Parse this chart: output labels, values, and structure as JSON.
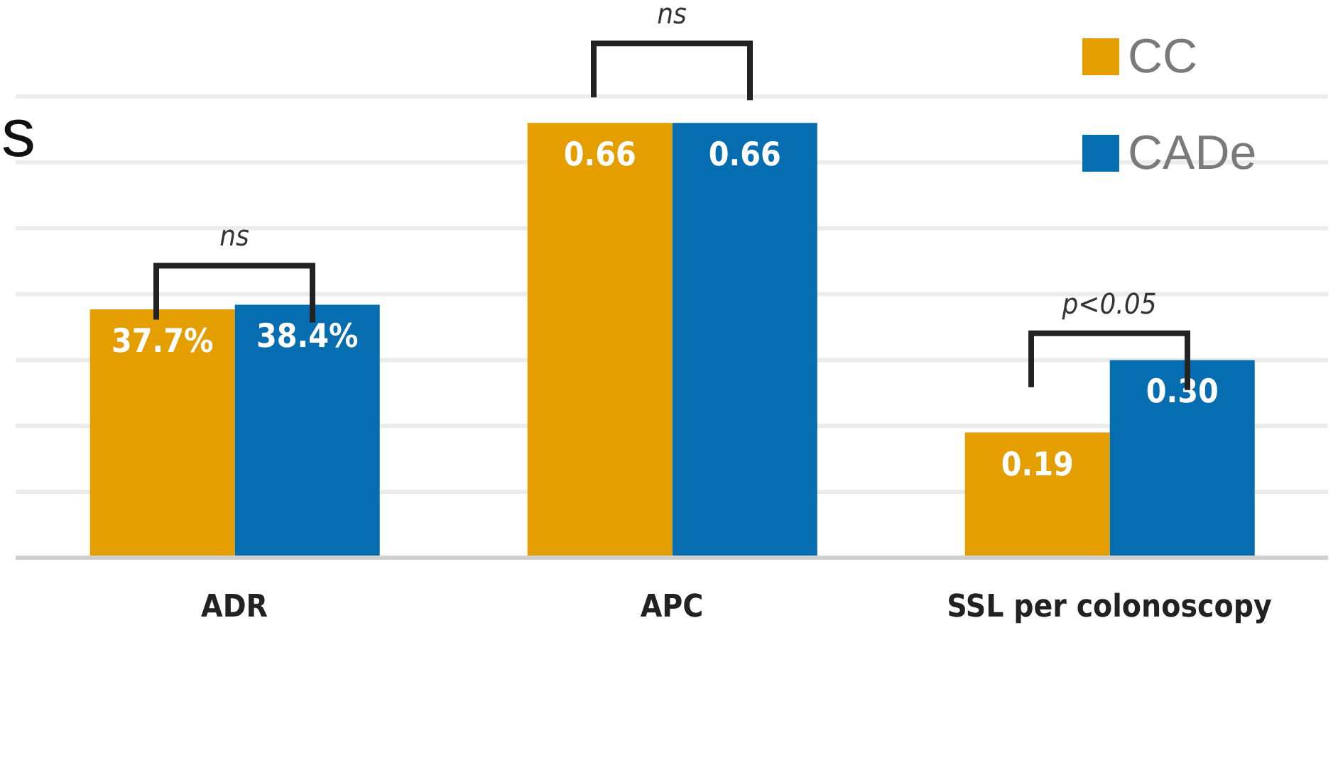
{
  "chart_data": {
    "type": "bar",
    "title": "s",
    "categories": [
      "ADR",
      "APC",
      "SSL per colonoscopy"
    ],
    "series": [
      {
        "name": "CC",
        "color": "#e59e00",
        "values": [
          0.377,
          0.66,
          0.19
        ],
        "value_labels": [
          "37.7%",
          "0.66",
          "0.19"
        ]
      },
      {
        "name": "CADe",
        "color": "#066db0",
        "values": [
          0.384,
          0.66,
          0.3
        ],
        "value_labels": [
          "38.4%",
          "0.66",
          "0.30"
        ]
      }
    ],
    "ylim": [
      0,
      0.7
    ],
    "yticks": [
      {
        "value": 0,
        "label": null
      },
      {
        "value": 0.1,
        "label": null
      },
      {
        "value": 0.2,
        "label": null
      },
      {
        "value": 0.3,
        "label": null
      },
      {
        "value": 0.4,
        "label": null
      },
      {
        "value": 0.5,
        "label": null
      },
      {
        "value": 0.6,
        "label": null
      },
      {
        "value": 0.7,
        "label": null
      }
    ],
    "tick_labels": "x",
    "grid": "y",
    "legend": "top right",
    "annotations": [
      "ns",
      "ns",
      "p<0.05"
    ]
  }
}
